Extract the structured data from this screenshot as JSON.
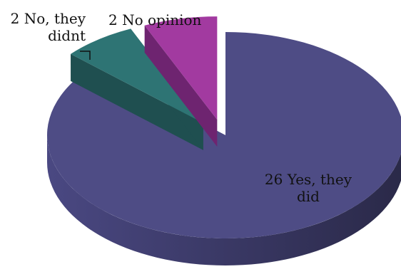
{
  "chart_data": {
    "type": "pie",
    "style": "3d-exploded",
    "slices": [
      {
        "label": "Yes, they did",
        "value": 26,
        "display": "26 Yes, they\ndid",
        "color": "#4E4C85",
        "side": "#3A3868"
      },
      {
        "label": "No, they didnt",
        "value": 2,
        "display": "2 No, they\ndidnt",
        "color": "#2E7474",
        "side": "#1F4F50"
      },
      {
        "label": "No opinion",
        "value": 2,
        "display": "2 No opinion",
        "color": "#A23AA0",
        "side": "#6E2470"
      }
    ]
  }
}
